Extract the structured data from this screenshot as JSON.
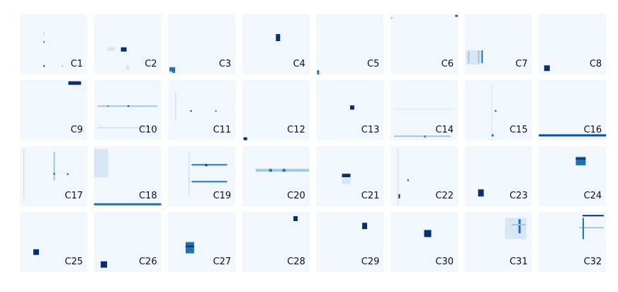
{
  "panels": [
    {
      "label": "C1"
    },
    {
      "label": "C2"
    },
    {
      "label": "C3"
    },
    {
      "label": "C4"
    },
    {
      "label": "C5"
    },
    {
      "label": "C6"
    },
    {
      "label": "C7"
    },
    {
      "label": "C8"
    },
    {
      "label": "C9"
    },
    {
      "label": "C10"
    },
    {
      "label": "C11"
    },
    {
      "label": "C12"
    },
    {
      "label": "C13"
    },
    {
      "label": "C14"
    },
    {
      "label": "C15"
    },
    {
      "label": "C16"
    },
    {
      "label": "C17"
    },
    {
      "label": "C18"
    },
    {
      "label": "C19"
    },
    {
      "label": "C20"
    },
    {
      "label": "C21"
    },
    {
      "label": "C22"
    },
    {
      "label": "C23"
    },
    {
      "label": "C24"
    },
    {
      "label": "C25"
    },
    {
      "label": "C26"
    },
    {
      "label": "C27"
    },
    {
      "label": "C28"
    },
    {
      "label": "C29"
    },
    {
      "label": "C30"
    },
    {
      "label": "C31"
    },
    {
      "label": "C32"
    }
  ]
}
